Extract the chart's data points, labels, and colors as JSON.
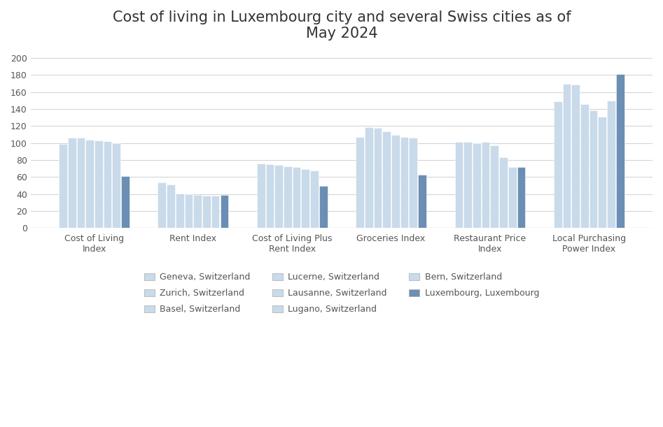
{
  "title": "Cost of living in Luxembourg city and several Swiss cities as of\nMay 2024",
  "categories": [
    "Cost of Living\nIndex",
    "Rent Index",
    "Cost of Living Plus\nRent Index",
    "Groceries Index",
    "Restaurant Price\nIndex",
    "Local Purchasing\nPower Index"
  ],
  "cities": [
    "Geneva, Switzerland",
    "Zurich, Switzerland",
    "Basel, Switzerland",
    "Lucerne, Switzerland",
    "Lausanne, Switzerland",
    "Lugano, Switzerland",
    "Bern, Switzerland",
    "Luxembourg, Luxembourg"
  ],
  "values": {
    "Geneva, Switzerland": [
      99,
      54,
      76,
      107,
      101,
      149
    ],
    "Zurich, Switzerland": [
      106,
      51,
      75,
      119,
      101,
      170
    ],
    "Basel, Switzerland": [
      106,
      41,
      74,
      118,
      100,
      169
    ],
    "Lucerne, Switzerland": [
      104,
      40,
      73,
      114,
      101,
      146
    ],
    "Lausanne, Switzerland": [
      103,
      39,
      72,
      110,
      97,
      138
    ],
    "Lugano, Switzerland": [
      102,
      38,
      69,
      107,
      83,
      131
    ],
    "Bern, Switzerland": [
      100,
      38,
      68,
      106,
      72,
      150
    ],
    "Luxembourg, Luxembourg": [
      61,
      39,
      50,
      63,
      72,
      181
    ]
  },
  "swiss_color": "#c9daea",
  "luxembourg_color": "#6b8eb5",
  "ylim": [
    0,
    210
  ],
  "yticks": [
    0,
    20,
    40,
    60,
    80,
    100,
    120,
    140,
    160,
    180,
    200
  ],
  "background_color": "#ffffff",
  "grid_color": "#d5d5d5",
  "title_fontsize": 15
}
